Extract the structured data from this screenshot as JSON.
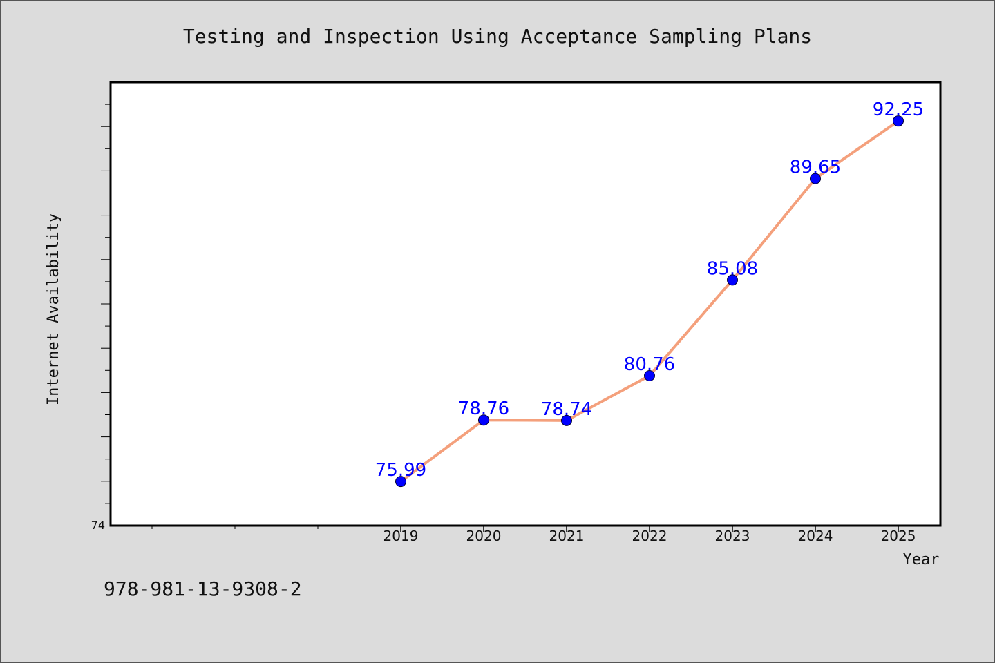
{
  "chart_data": {
    "type": "line",
    "title": "Testing and Inspection Using Acceptance Sampling Plans",
    "xlabel": "Year",
    "ylabel": "Internet Availability",
    "x": [
      "2019",
      "2020",
      "2021",
      "2022",
      "2023",
      "2024",
      "2025"
    ],
    "series": [
      {
        "values": [
          75.99,
          78.76,
          78.74,
          80.76,
          85.08,
          89.65,
          92.25
        ],
        "data_labels": [
          "75.99",
          "78.76",
          "78.74",
          "80.76",
          "85.08",
          "89.65",
          "92.25"
        ]
      }
    ],
    "y_tick_labels": [
      "74"
    ],
    "ylim": [
      74,
      94
    ],
    "grid": false,
    "legend": "none"
  },
  "footer": {
    "isbn": "978-981-13-9308-2"
  },
  "colors": {
    "background": "#dcdcdc",
    "plot_background": "#ffffff",
    "line": "#f4a07c",
    "marker": "#0000ff",
    "data_label": "#0000ff"
  }
}
